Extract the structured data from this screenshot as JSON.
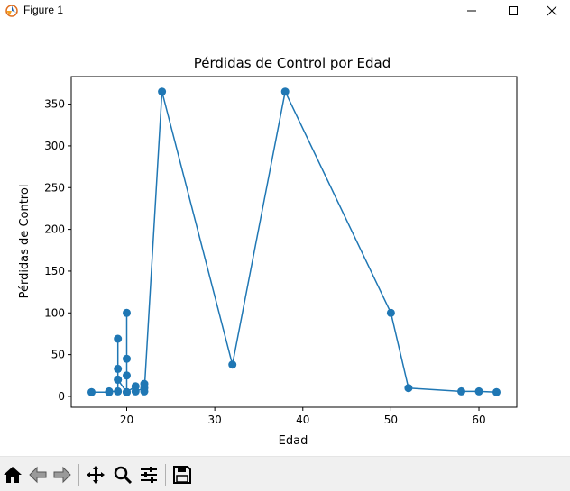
{
  "window": {
    "title": "Figure 1",
    "icons": [
      "app-icon",
      "minimize-icon",
      "maximize-icon",
      "close-icon"
    ]
  },
  "toolbar": {
    "buttons": [
      "home-icon",
      "back-icon",
      "forward-icon",
      "pan-icon",
      "zoom-icon",
      "configure-subplots-icon",
      "save-icon"
    ]
  },
  "colors": {
    "series": "#1f77b4",
    "toolbar_bg": "#f0f0f0"
  },
  "chart_data": {
    "type": "line",
    "title": "Pérdidas de Control por Edad",
    "xlabel": "Edad",
    "ylabel": "Pérdidas de Control",
    "xlim": [
      13.7,
      64.3
    ],
    "ylim": [
      -13,
      383
    ],
    "xticks": [
      20,
      30,
      40,
      50,
      60
    ],
    "yticks": [
      0,
      50,
      100,
      150,
      200,
      250,
      300,
      350
    ],
    "grid": false,
    "markers": true,
    "series": [
      {
        "x": [
          16,
          18,
          18,
          19,
          19,
          19,
          19,
          19,
          20,
          20,
          20,
          20,
          20,
          21,
          21,
          22,
          22,
          22,
          24,
          32,
          38,
          50,
          52,
          58,
          60,
          62
        ],
        "y": [
          5,
          5,
          6,
          6,
          20,
          33,
          69,
          20,
          5,
          100,
          45,
          25,
          5,
          12,
          6,
          10,
          15,
          6,
          365,
          38,
          365,
          100,
          10,
          6,
          6,
          5
        ]
      }
    ]
  }
}
